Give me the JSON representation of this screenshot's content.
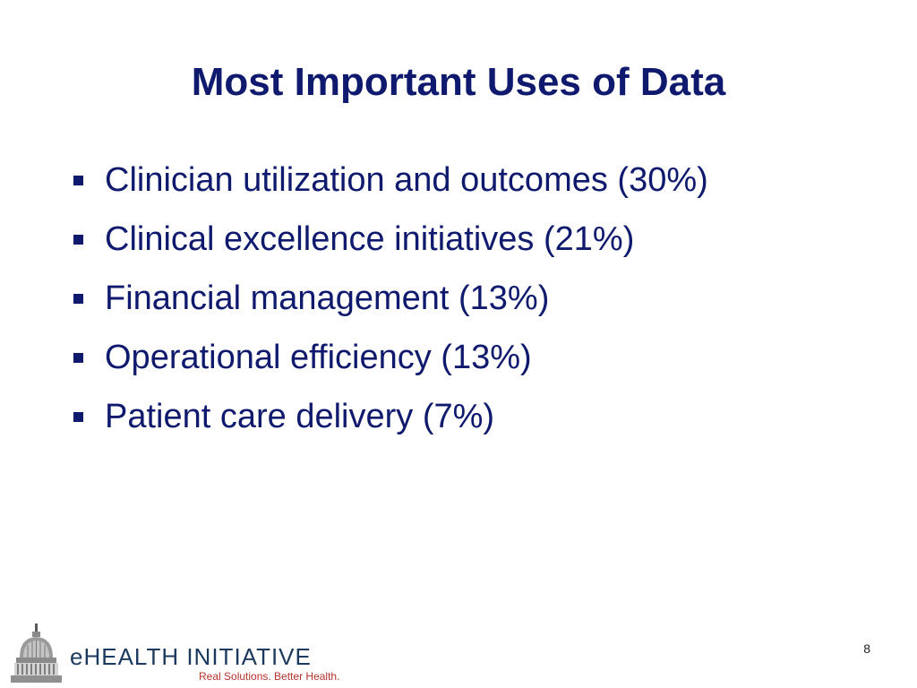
{
  "slide": {
    "title": "Most Important Uses of Data",
    "bullets": [
      "Clinician utilization and outcomes (30%)",
      "Clinical excellence initiatives (21%)",
      "Financial management (13%)",
      "Operational efficiency (13%)",
      "Patient care delivery (7%)"
    ],
    "page_number": "8"
  },
  "logo": {
    "name": "eHEALTH INITIATIVE",
    "tagline": "Real Solutions. Better Health.",
    "icon": "capitol-dome-icon"
  },
  "colors": {
    "text_primary": "#0f1a6e",
    "logo_name": "#1c3a5e",
    "logo_tagline": "#b8322a"
  }
}
